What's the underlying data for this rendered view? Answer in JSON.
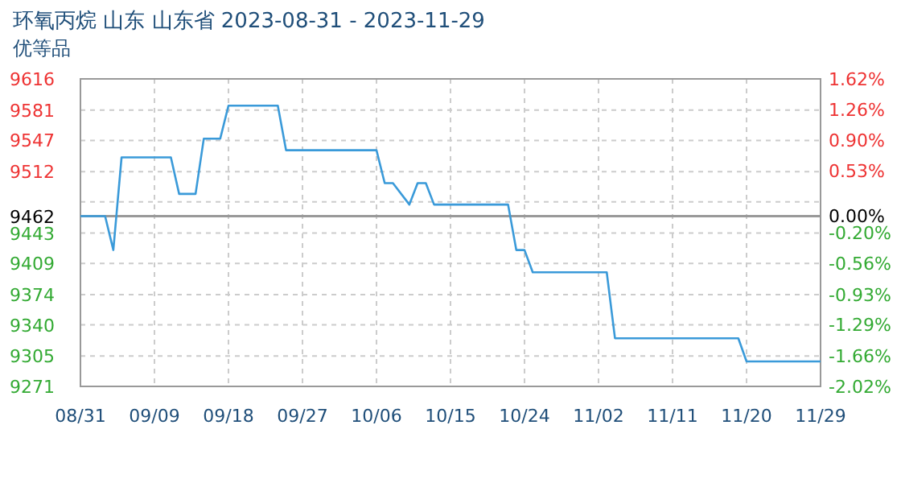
{
  "chart_data": {
    "type": "line",
    "title": "环氧丙烷 山东 山东省 2023-08-31 - 2023-11-29",
    "subtitle": "优等品",
    "x": [
      "2023-08-31",
      "2023-09-03",
      "2023-09-04",
      "2023-09-05",
      "2023-09-11",
      "2023-09-12",
      "2023-09-14",
      "2023-09-15",
      "2023-09-17",
      "2023-09-18",
      "2023-09-24",
      "2023-09-25",
      "2023-10-06",
      "2023-10-07",
      "2023-10-08",
      "2023-10-10",
      "2023-10-11",
      "2023-10-12",
      "2023-10-13",
      "2023-10-22",
      "2023-10-23",
      "2023-10-24",
      "2023-10-25",
      "2023-11-03",
      "2023-11-04",
      "2023-11-19",
      "2023-11-20",
      "2023-11-29"
    ],
    "series": [
      {
        "color": "#3a9ad9",
        "values": [
          9462,
          9462,
          9424,
          9528,
          9528,
          9487,
          9487,
          9549,
          9549,
          9586,
          9586,
          9536,
          9536,
          9499,
          9499,
          9475,
          9499,
          9499,
          9475,
          9475,
          9424,
          9424,
          9399,
          9399,
          9325,
          9325,
          9299,
          9299
        ]
      }
    ],
    "xlim": [
      "2023-08-31",
      "2023-11-29"
    ],
    "xticks": [
      {
        "value": "2023-08-31",
        "label": "08/31"
      },
      {
        "value": "2023-09-09",
        "label": "09/09"
      },
      {
        "value": "2023-09-18",
        "label": "09/18"
      },
      {
        "value": "2023-09-27",
        "label": "09/27"
      },
      {
        "value": "2023-10-06",
        "label": "10/06"
      },
      {
        "value": "2023-10-15",
        "label": "10/15"
      },
      {
        "value": "2023-10-24",
        "label": "10/24"
      },
      {
        "value": "2023-11-02",
        "label": "11/02"
      },
      {
        "value": "2023-11-11",
        "label": "11/11"
      },
      {
        "value": "2023-11-20",
        "label": "11/20"
      },
      {
        "value": "2023-11-29",
        "label": "11/29"
      }
    ],
    "ylim": [
      9271,
      9616
    ],
    "yticks": [
      9616,
      9581,
      9547,
      9512,
      {
        "value": 9478,
        "label": null
      },
      9462,
      9443,
      9409,
      9374,
      9340,
      9305,
      9271
    ],
    "y2lim": [
      -2.02,
      1.62
    ],
    "y2ticks": [
      {
        "value": 1.62,
        "label": "1.62%"
      },
      {
        "value": 1.26,
        "label": "1.26%"
      },
      {
        "value": 0.9,
        "label": "0.90%"
      },
      {
        "value": 0.53,
        "label": "0.53%"
      },
      {
        "value": 0,
        "label": "0.00%"
      },
      {
        "value": -0.2,
        "label": "-0.20%"
      },
      {
        "value": -0.56,
        "label": "-0.56%"
      },
      {
        "value": -0.93,
        "label": "-0.93%"
      },
      {
        "value": -1.29,
        "label": "-1.29%"
      },
      {
        "value": -1.66,
        "label": "-1.66%"
      },
      {
        "value": -2.02,
        "label": "-2.02%"
      }
    ],
    "ref_lines": [
      {
        "axis": "y",
        "value": 9462,
        "color": "#999999"
      }
    ],
    "grid": true,
    "marker": "none",
    "line_style": "solid"
  }
}
